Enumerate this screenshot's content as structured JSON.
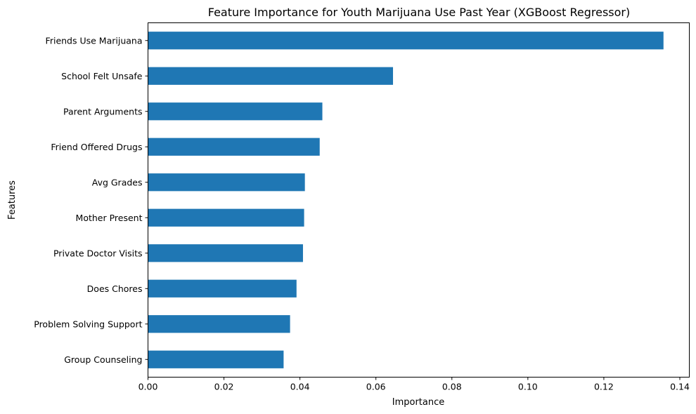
{
  "chart_data": {
    "type": "bar",
    "orientation": "horizontal",
    "title": "Feature Importance for Youth Marijuana Use Past Year (XGBoost Regressor)",
    "xlabel": "Importance",
    "ylabel": "Features",
    "categories": [
      "Friends Use Marijuana",
      "School Felt Unsafe",
      "Parent Arguments",
      "Friend Offered Drugs",
      "Avg Grades",
      "Mother Present",
      "Private Doctor Visits",
      "Does Chores",
      "Problem Solving Support",
      "Group Counseling"
    ],
    "values": [
      0.1357,
      0.0645,
      0.0459,
      0.0452,
      0.0413,
      0.0411,
      0.0408,
      0.0391,
      0.0374,
      0.0357
    ],
    "xlim": [
      0,
      0.1425
    ],
    "xticks": [
      0.0,
      0.02,
      0.04,
      0.06,
      0.08,
      0.1,
      0.12,
      0.14
    ],
    "xtick_labels": [
      "0.00",
      "0.02",
      "0.04",
      "0.06",
      "0.08",
      "0.10",
      "0.12",
      "0.14"
    ],
    "bar_color": "#1f77b4",
    "grid": false,
    "legend": "none"
  }
}
